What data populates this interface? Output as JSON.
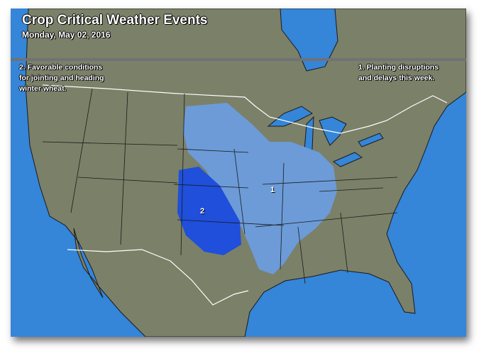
{
  "map": {
    "title": "Crop Critical Weather Events",
    "date": "Monday, May 02, 2016",
    "notes": [
      {
        "id": "1",
        "text": "1. Planting disruptions\nand delays this week."
      },
      {
        "id": "2",
        "text": "2. Favorable conditions\nfor jointing and heading\nwinter wheat."
      }
    ],
    "region_labels": {
      "area1": "1",
      "area2": "2"
    },
    "colors": {
      "ocean": "#3585d8",
      "land": "#7b8068",
      "area1": "#6c9bd8",
      "area2": "#1f4fdb",
      "border": "#ffffff",
      "header_band": "#6f7277"
    }
  }
}
